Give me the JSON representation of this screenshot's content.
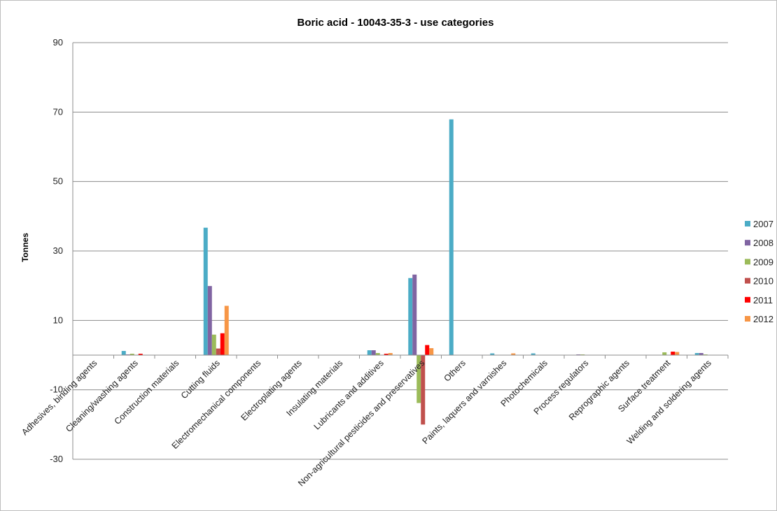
{
  "chart_data": {
    "type": "bar",
    "title": "Boric acid - 10043-35-3 - use categories",
    "xlabel": "",
    "ylabel": "Tonnes",
    "ylim": [
      -30,
      90
    ],
    "yticks": [
      90,
      70,
      50,
      30,
      10,
      -10,
      -30
    ],
    "grid": true,
    "legend_position": "right",
    "categories": [
      "Adhesives, binding agents",
      "Cleaning/washing agents",
      "Construction materials",
      "Cutting fluids",
      "Electromechanical components",
      "Electroplating agents",
      "Insulating materials",
      "Lubricants and additives",
      "Non-agricultural pesticides and preservatives",
      "Others",
      "Paints, laquers and varnishes",
      "Photochemicals",
      "Process regulators",
      "Reprographic agents",
      "Surface treatment",
      "Welding and soldering agents"
    ],
    "series": [
      {
        "name": "2007",
        "color": "#4bacc6",
        "values": [
          0,
          1.2,
          0,
          36.7,
          0,
          0,
          0,
          1.4,
          22.2,
          67.9,
          0.5,
          0.5,
          0,
          0,
          0,
          0.6
        ]
      },
      {
        "name": "2008",
        "color": "#8064a2",
        "values": [
          0,
          0.2,
          0,
          19.9,
          0,
          0,
          0,
          1.4,
          23.2,
          0,
          0,
          0,
          0.2,
          0,
          0,
          0.6
        ]
      },
      {
        "name": "2009",
        "color": "#9bbb59",
        "values": [
          0,
          0.4,
          0,
          5.9,
          0,
          0,
          0,
          0.6,
          -13.8,
          0,
          0,
          0,
          0.2,
          0,
          0.8,
          0.2
        ]
      },
      {
        "name": "2010",
        "color": "#c0504d",
        "values": [
          0,
          0,
          0,
          1.9,
          0,
          0,
          0,
          0,
          -20.0,
          0,
          0,
          0,
          0,
          0,
          0,
          0
        ]
      },
      {
        "name": "2011",
        "color": "#ff0000",
        "values": [
          0,
          0.4,
          0,
          6.3,
          0,
          0,
          0,
          0.4,
          2.9,
          0,
          0,
          0,
          0,
          0,
          1.0,
          0
        ]
      },
      {
        "name": "2012",
        "color": "#f79646",
        "values": [
          0,
          0,
          0,
          14.2,
          0,
          0,
          0,
          0.6,
          2.0,
          0,
          0.5,
          0,
          0,
          0,
          0.9,
          0
        ]
      }
    ]
  }
}
